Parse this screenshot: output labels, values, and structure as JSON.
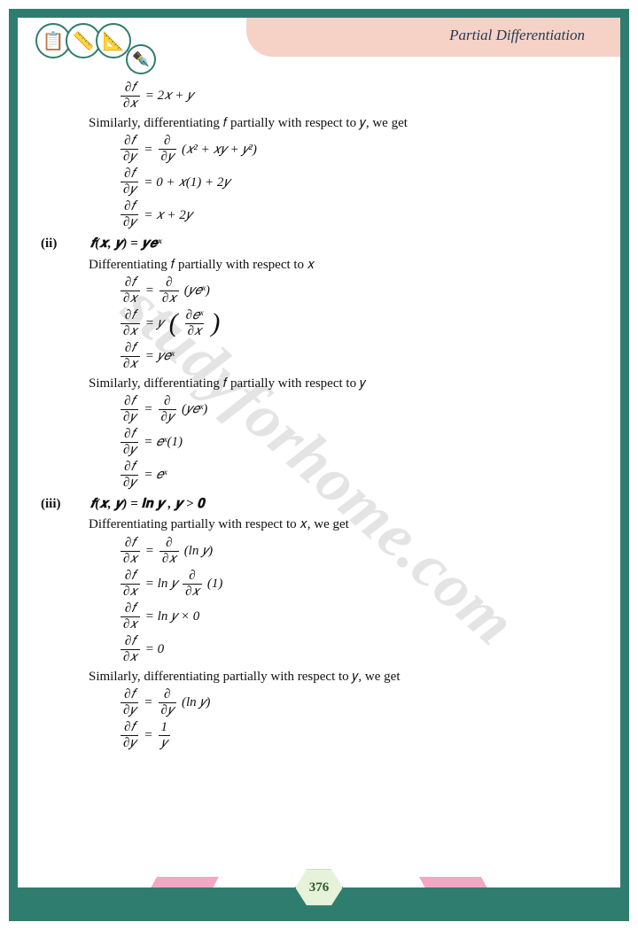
{
  "header": {
    "title": "Partial Differentiation"
  },
  "icons": [
    "📋",
    "📏",
    "📐",
    "✒️"
  ],
  "watermark": "studyforhome.com",
  "page_number": "376",
  "colors": {
    "border": "#2f7d6e",
    "header_band": "#f5d2c5",
    "pink_accent": "#f2a7c3",
    "hex_fill": "#e6f2d9",
    "text": "#111111"
  },
  "lines": {
    "eq1": "= 2𝑥 + 𝑦",
    "txt1": "Similarly, differentiating 𝑓 partially with respect to 𝑦, we get",
    "eq2_rhs": "(𝑥² + 𝑥𝑦 + 𝑦²)",
    "eq3": "= 0 + 𝑥(1) + 2𝑦",
    "eq4": "= 𝑥 + 2𝑦",
    "p2_num": "(ii)",
    "p2_fn": "𝒇(𝒙, 𝒚) = 𝒚𝒆ˣ",
    "p2_txt1": "Differentiating 𝑓 partially with respect to 𝑥",
    "eq5_rhs": "(𝑦𝑒ˣ)",
    "eq6_pre": "= 𝑦",
    "eq7": "= 𝑦𝑒ˣ",
    "p2_txt2": "Similarly, differentiating 𝑓 partially with respect to 𝑦",
    "eq8_rhs": "(𝑦𝑒ˣ)",
    "eq9": "= 𝑒ˣ(1)",
    "eq10": "= 𝑒ˣ",
    "p3_num": "(iii)",
    "p3_fn": "𝒇(𝒙, 𝒚) = 𝐥𝐧 𝒚 , 𝒚 > 𝟎",
    "p3_txt1": "Differentiating partially with respect to 𝑥, we get",
    "eq11_rhs": "(ln 𝑦)",
    "eq12_pre": "= ln 𝑦",
    "eq12_post": "(1)",
    "eq13": "= ln 𝑦 × 0",
    "eq14": "= 0",
    "p3_txt2": "Similarly, differentiating partially with respect to 𝑦, we get",
    "eq15_rhs": "(ln 𝑦)",
    "frac_dfx_n": "∂𝑓",
    "frac_dfx_d": "∂𝑥",
    "frac_dfy_n": "∂𝑓",
    "frac_dfy_d": "∂𝑦",
    "frac_dx_n": "∂",
    "frac_dx_d": "∂𝑥",
    "frac_dy_n": "∂",
    "frac_dy_d": "∂𝑦",
    "frac_dex_n": "∂𝑒ˣ",
    "frac_dex_d": "∂𝑥",
    "frac_1y_n": "1",
    "frac_1y_d": "𝑦",
    "eq_eq": "="
  }
}
